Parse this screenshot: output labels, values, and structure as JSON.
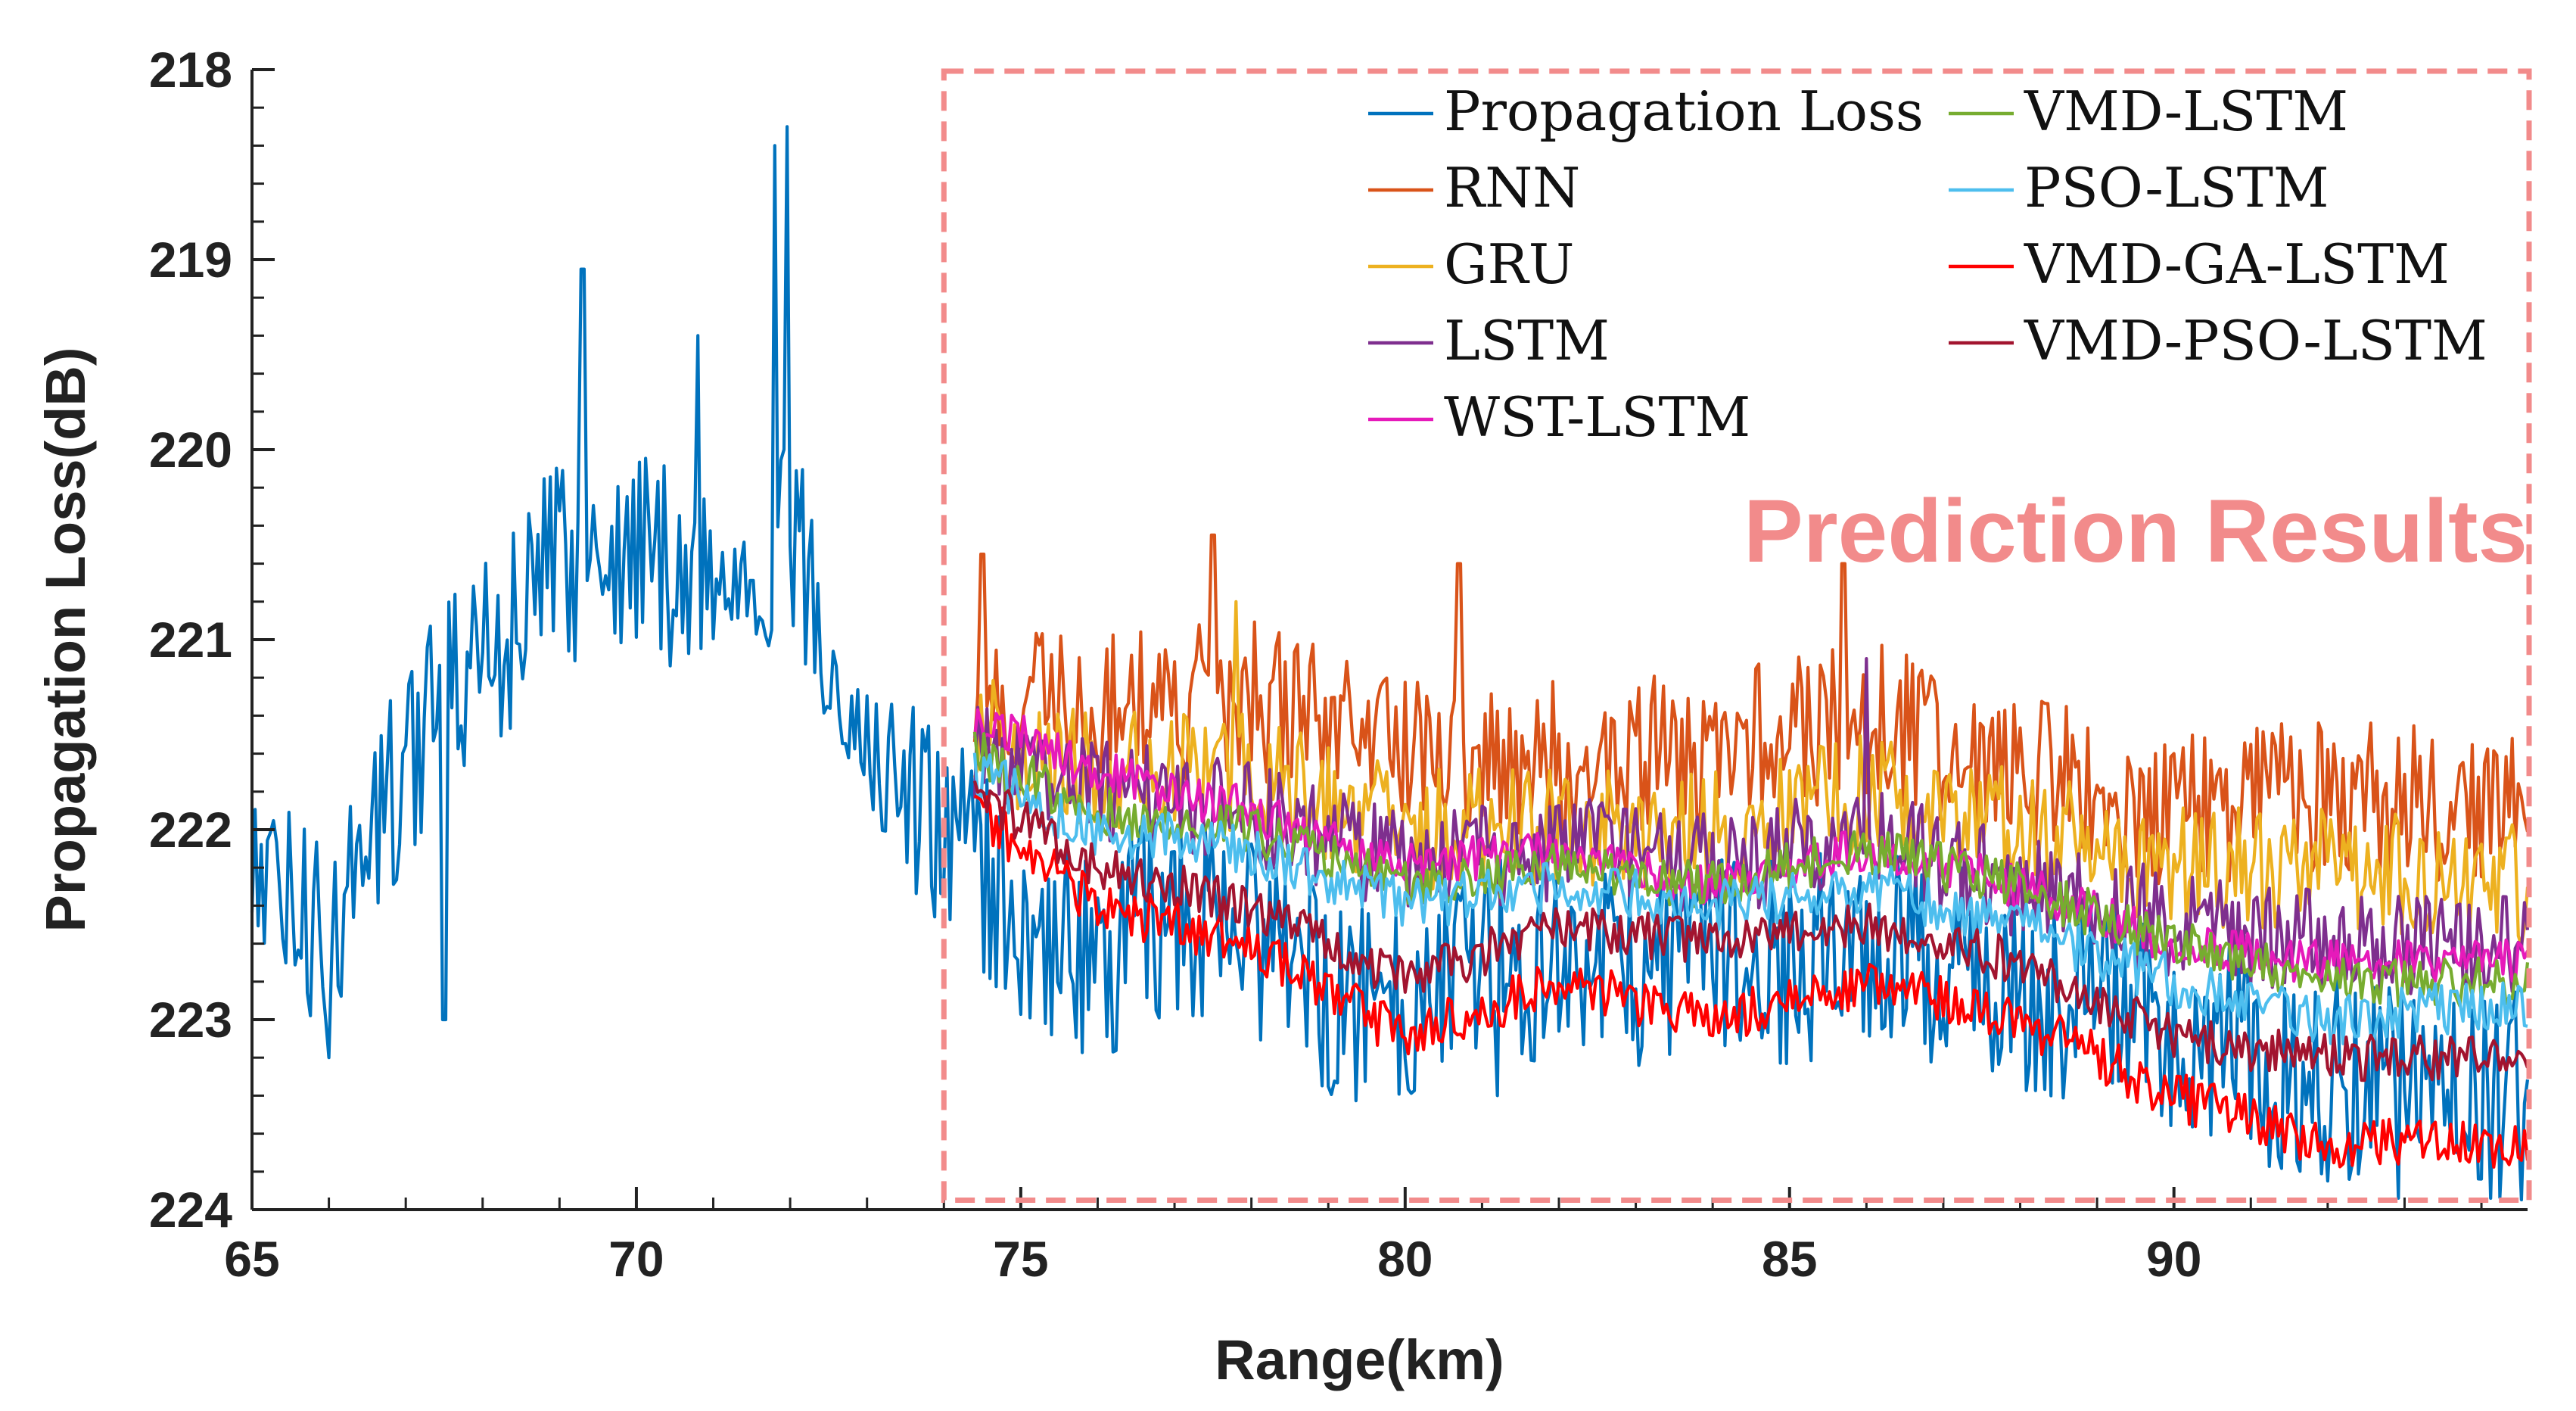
{
  "chart_data": {
    "type": "line",
    "title": "",
    "xlabel": "Range(km)",
    "ylabel": "Propagation Loss(dB)",
    "xlim": [
      65,
      94.6
    ],
    "ylim": [
      218,
      224
    ],
    "y_reversed": true,
    "x_ticks": [
      65,
      70,
      75,
      80,
      85,
      90
    ],
    "y_ticks": [
      218,
      219,
      220,
      221,
      222,
      223,
      224
    ],
    "grid": false,
    "legend": {
      "placement": "top-right",
      "columns": 2
    },
    "annotation": {
      "text": "Prediction Results",
      "color": "#f28b8b",
      "region_x": [
        74,
        94.6
      ],
      "region_y": [
        218,
        223.95
      ],
      "style": "dashed-box"
    },
    "series": [
      {
        "name": "Propagation Loss",
        "color": "#0072bd",
        "x_range": [
          65,
          94.6
        ],
        "knots_x": [
          65,
          66,
          67,
          68,
          69,
          70,
          71,
          72,
          73,
          74,
          75,
          76,
          77,
          78,
          79,
          80,
          81,
          82,
          83,
          84,
          85,
          86,
          87,
          88,
          89,
          90,
          91,
          92,
          93,
          94,
          94.6
        ],
        "knots_y": [
          222.2,
          222.6,
          221.6,
          221.1,
          220.6,
          220.5,
          220.7,
          220.4,
          221.6,
          222.0,
          222.5,
          222.7,
          222.4,
          222.6,
          222.9,
          222.9,
          222.6,
          222.7,
          222.8,
          222.6,
          222.7,
          222.6,
          222.7,
          222.9,
          222.9,
          223.1,
          223.2,
          223.3,
          223.4,
          223.4,
          223.4
        ],
        "noise": 0.55,
        "spikes": [
          {
            "x": 71.8,
            "y": 218.4
          },
          {
            "x": 71.95,
            "y": 218.3
          },
          {
            "x": 69.3,
            "y": 219.05
          },
          {
            "x": 70.8,
            "y": 219.4
          },
          {
            "x": 66.0,
            "y": 223.2
          },
          {
            "x": 67.5,
            "y": 223.0
          },
          {
            "x": 81.2,
            "y": 223.4
          },
          {
            "x": 93.7,
            "y": 223.7
          }
        ]
      },
      {
        "name": "RNN",
        "color": "#d95319",
        "x_range": [
          74.4,
          94.6
        ],
        "knots_x": [
          74.4,
          76,
          78,
          80,
          82,
          84,
          86,
          88,
          90,
          92,
          94.6
        ],
        "knots_y": [
          221.3,
          221.4,
          221.3,
          221.6,
          221.6,
          221.6,
          221.4,
          221.7,
          221.9,
          221.8,
          221.9
        ],
        "noise": 0.42,
        "spikes": [
          {
            "x": 77.5,
            "y": 220.45
          },
          {
            "x": 80.7,
            "y": 220.6
          },
          {
            "x": 85.7,
            "y": 220.6
          },
          {
            "x": 74.5,
            "y": 220.55
          }
        ]
      },
      {
        "name": "GRU",
        "color": "#edb120",
        "x_range": [
          74.4,
          94.6
        ],
        "knots_x": [
          74.4,
          76,
          78,
          80,
          82,
          84,
          86,
          88,
          90,
          92,
          94.6
        ],
        "knots_y": [
          221.5,
          221.7,
          221.7,
          222.0,
          222.0,
          222.0,
          221.8,
          222.0,
          222.2,
          222.2,
          222.3
        ],
        "noise": 0.32,
        "spikes": [
          {
            "x": 77.8,
            "y": 220.8
          }
        ]
      },
      {
        "name": "LSTM",
        "color": "#7e2f8e",
        "x_range": [
          74.4,
          94.6
        ],
        "knots_x": [
          74.4,
          76,
          78,
          80,
          82,
          84,
          86,
          88,
          90,
          92,
          94.6
        ],
        "knots_y": [
          221.6,
          221.8,
          221.9,
          222.2,
          222.1,
          222.2,
          222.0,
          222.3,
          222.5,
          222.6,
          222.6
        ],
        "noise": 0.28,
        "spikes": [
          {
            "x": 86.0,
            "y": 221.1
          }
        ]
      },
      {
        "name": "WST-LSTM",
        "color": "#e61aba",
        "x_range": [
          74.4,
          94.6
        ],
        "knots_x": [
          74.4,
          76,
          78,
          80,
          82,
          84,
          86,
          88,
          90,
          92,
          94.6
        ],
        "knots_y": [
          221.4,
          221.7,
          221.9,
          222.2,
          222.1,
          222.3,
          222.1,
          222.3,
          222.6,
          222.7,
          222.7
        ],
        "noise": 0.12,
        "spikes": []
      },
      {
        "name": "VMD-LSTM",
        "color": "#77ac30",
        "x_range": [
          74.4,
          94.6
        ],
        "knots_x": [
          74.4,
          76,
          78,
          80,
          82,
          84,
          86,
          88,
          90,
          92,
          94.6
        ],
        "knots_y": [
          221.6,
          221.9,
          222.0,
          222.3,
          222.2,
          222.3,
          222.1,
          222.3,
          222.6,
          222.8,
          222.8
        ],
        "noise": 0.13,
        "spikes": []
      },
      {
        "name": "PSO-LSTM",
        "color": "#4dbeee",
        "x_range": [
          74.4,
          94.6
        ],
        "knots_x": [
          74.4,
          76,
          78,
          80,
          82,
          84,
          86,
          88,
          90,
          92,
          94.6
        ],
        "knots_y": [
          221.7,
          222.0,
          222.1,
          222.4,
          222.3,
          222.4,
          222.3,
          222.5,
          222.8,
          223.0,
          222.9
        ],
        "noise": 0.14,
        "spikes": []
      },
      {
        "name": "VMD-GA-LSTM",
        "color": "#ff0000",
        "x_range": [
          74.4,
          94.6
        ],
        "knots_x": [
          74.4,
          76,
          78,
          80,
          82,
          84,
          86,
          88,
          90,
          92,
          94.6
        ],
        "knots_y": [
          221.9,
          222.4,
          222.6,
          223.1,
          222.8,
          223.0,
          222.8,
          223.0,
          223.4,
          223.65,
          223.65
        ],
        "noise": 0.13,
        "spikes": []
      },
      {
        "name": "VMD-PSO-LSTM",
        "color": "#a2142f",
        "x_range": [
          74.4,
          94.6
        ],
        "knots_x": [
          74.4,
          76,
          78,
          80,
          82,
          84,
          86,
          88,
          90,
          92,
          94.6
        ],
        "knots_y": [
          221.8,
          222.2,
          222.4,
          222.8,
          222.5,
          222.6,
          222.5,
          222.7,
          223.1,
          223.2,
          223.2
        ],
        "noise": 0.12,
        "spikes": []
      }
    ]
  }
}
